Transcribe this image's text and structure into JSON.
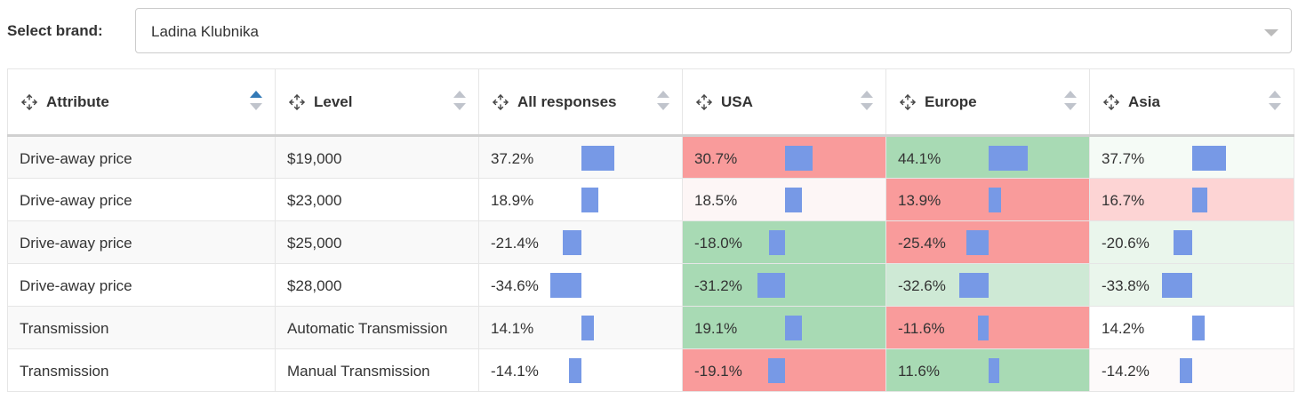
{
  "filter": {
    "label": "Select brand:",
    "selected": "Ladina Klubnika"
  },
  "table": {
    "columns": [
      {
        "label": "Attribute",
        "sort": "asc"
      },
      {
        "label": "Level",
        "sort": "none"
      },
      {
        "label": "All responses",
        "sort": "none"
      },
      {
        "label": "USA",
        "sort": "none"
      },
      {
        "label": "Europe",
        "sort": "none"
      },
      {
        "label": "Asia",
        "sort": "none"
      }
    ],
    "rows": [
      {
        "attribute": "Drive-away price",
        "level": "$19,000",
        "cells": [
          {
            "text": "37.2%",
            "value": 37.2,
            "bg": "#f9f9f9"
          },
          {
            "text": "30.7%",
            "value": 30.7,
            "bg": "#f99b9b"
          },
          {
            "text": "44.1%",
            "value": 44.1,
            "bg": "#a8dab4"
          },
          {
            "text": "37.7%",
            "value": 37.7,
            "bg": "#f5fbf6"
          }
        ]
      },
      {
        "attribute": "Drive-away price",
        "level": "$23,000",
        "cells": [
          {
            "text": "18.9%",
            "value": 18.9,
            "bg": "#ffffff"
          },
          {
            "text": "18.5%",
            "value": 18.5,
            "bg": "#fdf6f6"
          },
          {
            "text": "13.9%",
            "value": 13.9,
            "bg": "#f99b9b"
          },
          {
            "text": "16.7%",
            "value": 16.7,
            "bg": "#fdd4d4"
          }
        ]
      },
      {
        "attribute": "Drive-away price",
        "level": "$25,000",
        "cells": [
          {
            "text": "-21.4%",
            "value": -21.4,
            "bg": "#f9f9f9"
          },
          {
            "text": "-18.0%",
            "value": -18.0,
            "bg": "#a8dab4"
          },
          {
            "text": "-25.4%",
            "value": -25.4,
            "bg": "#f99b9b"
          },
          {
            "text": "-20.6%",
            "value": -20.6,
            "bg": "#eaf6ec"
          }
        ]
      },
      {
        "attribute": "Drive-away price",
        "level": "$28,000",
        "cells": [
          {
            "text": "-34.6%",
            "value": -34.6,
            "bg": "#ffffff"
          },
          {
            "text": "-31.2%",
            "value": -31.2,
            "bg": "#a8dab4"
          },
          {
            "text": "-32.6%",
            "value": -32.6,
            "bg": "#cee9d5"
          },
          {
            "text": "-33.8%",
            "value": -33.8,
            "bg": "#eaf6ec"
          }
        ]
      },
      {
        "attribute": "Transmission",
        "level": "Automatic Transmission",
        "cells": [
          {
            "text": "14.1%",
            "value": 14.1,
            "bg": "#f9f9f9"
          },
          {
            "text": "19.1%",
            "value": 19.1,
            "bg": "#a8dab4"
          },
          {
            "text": "-11.6%",
            "value": -11.6,
            "bg": "#f99b9b"
          },
          {
            "text": "14.2%",
            "value": 14.2,
            "bg": "#ffffff"
          }
        ]
      },
      {
        "attribute": "Transmission",
        "level": "Manual Transmission",
        "cells": [
          {
            "text": "-14.1%",
            "value": -14.1,
            "bg": "#ffffff"
          },
          {
            "text": "-19.1%",
            "value": -19.1,
            "bg": "#f99b9b"
          },
          {
            "text": "11.6%",
            "value": 11.6,
            "bg": "#a8dab4"
          },
          {
            "text": "-14.2%",
            "value": -14.2,
            "bg": "#fdfafa"
          }
        ]
      }
    ]
  },
  "colors": {
    "bar": "#7799e6",
    "sort_active": "#337ab7",
    "sort_inactive": "#c0c4cc"
  },
  "icons": {
    "column_handle": "move-icon",
    "dropdown": "caret-down-icon"
  }
}
